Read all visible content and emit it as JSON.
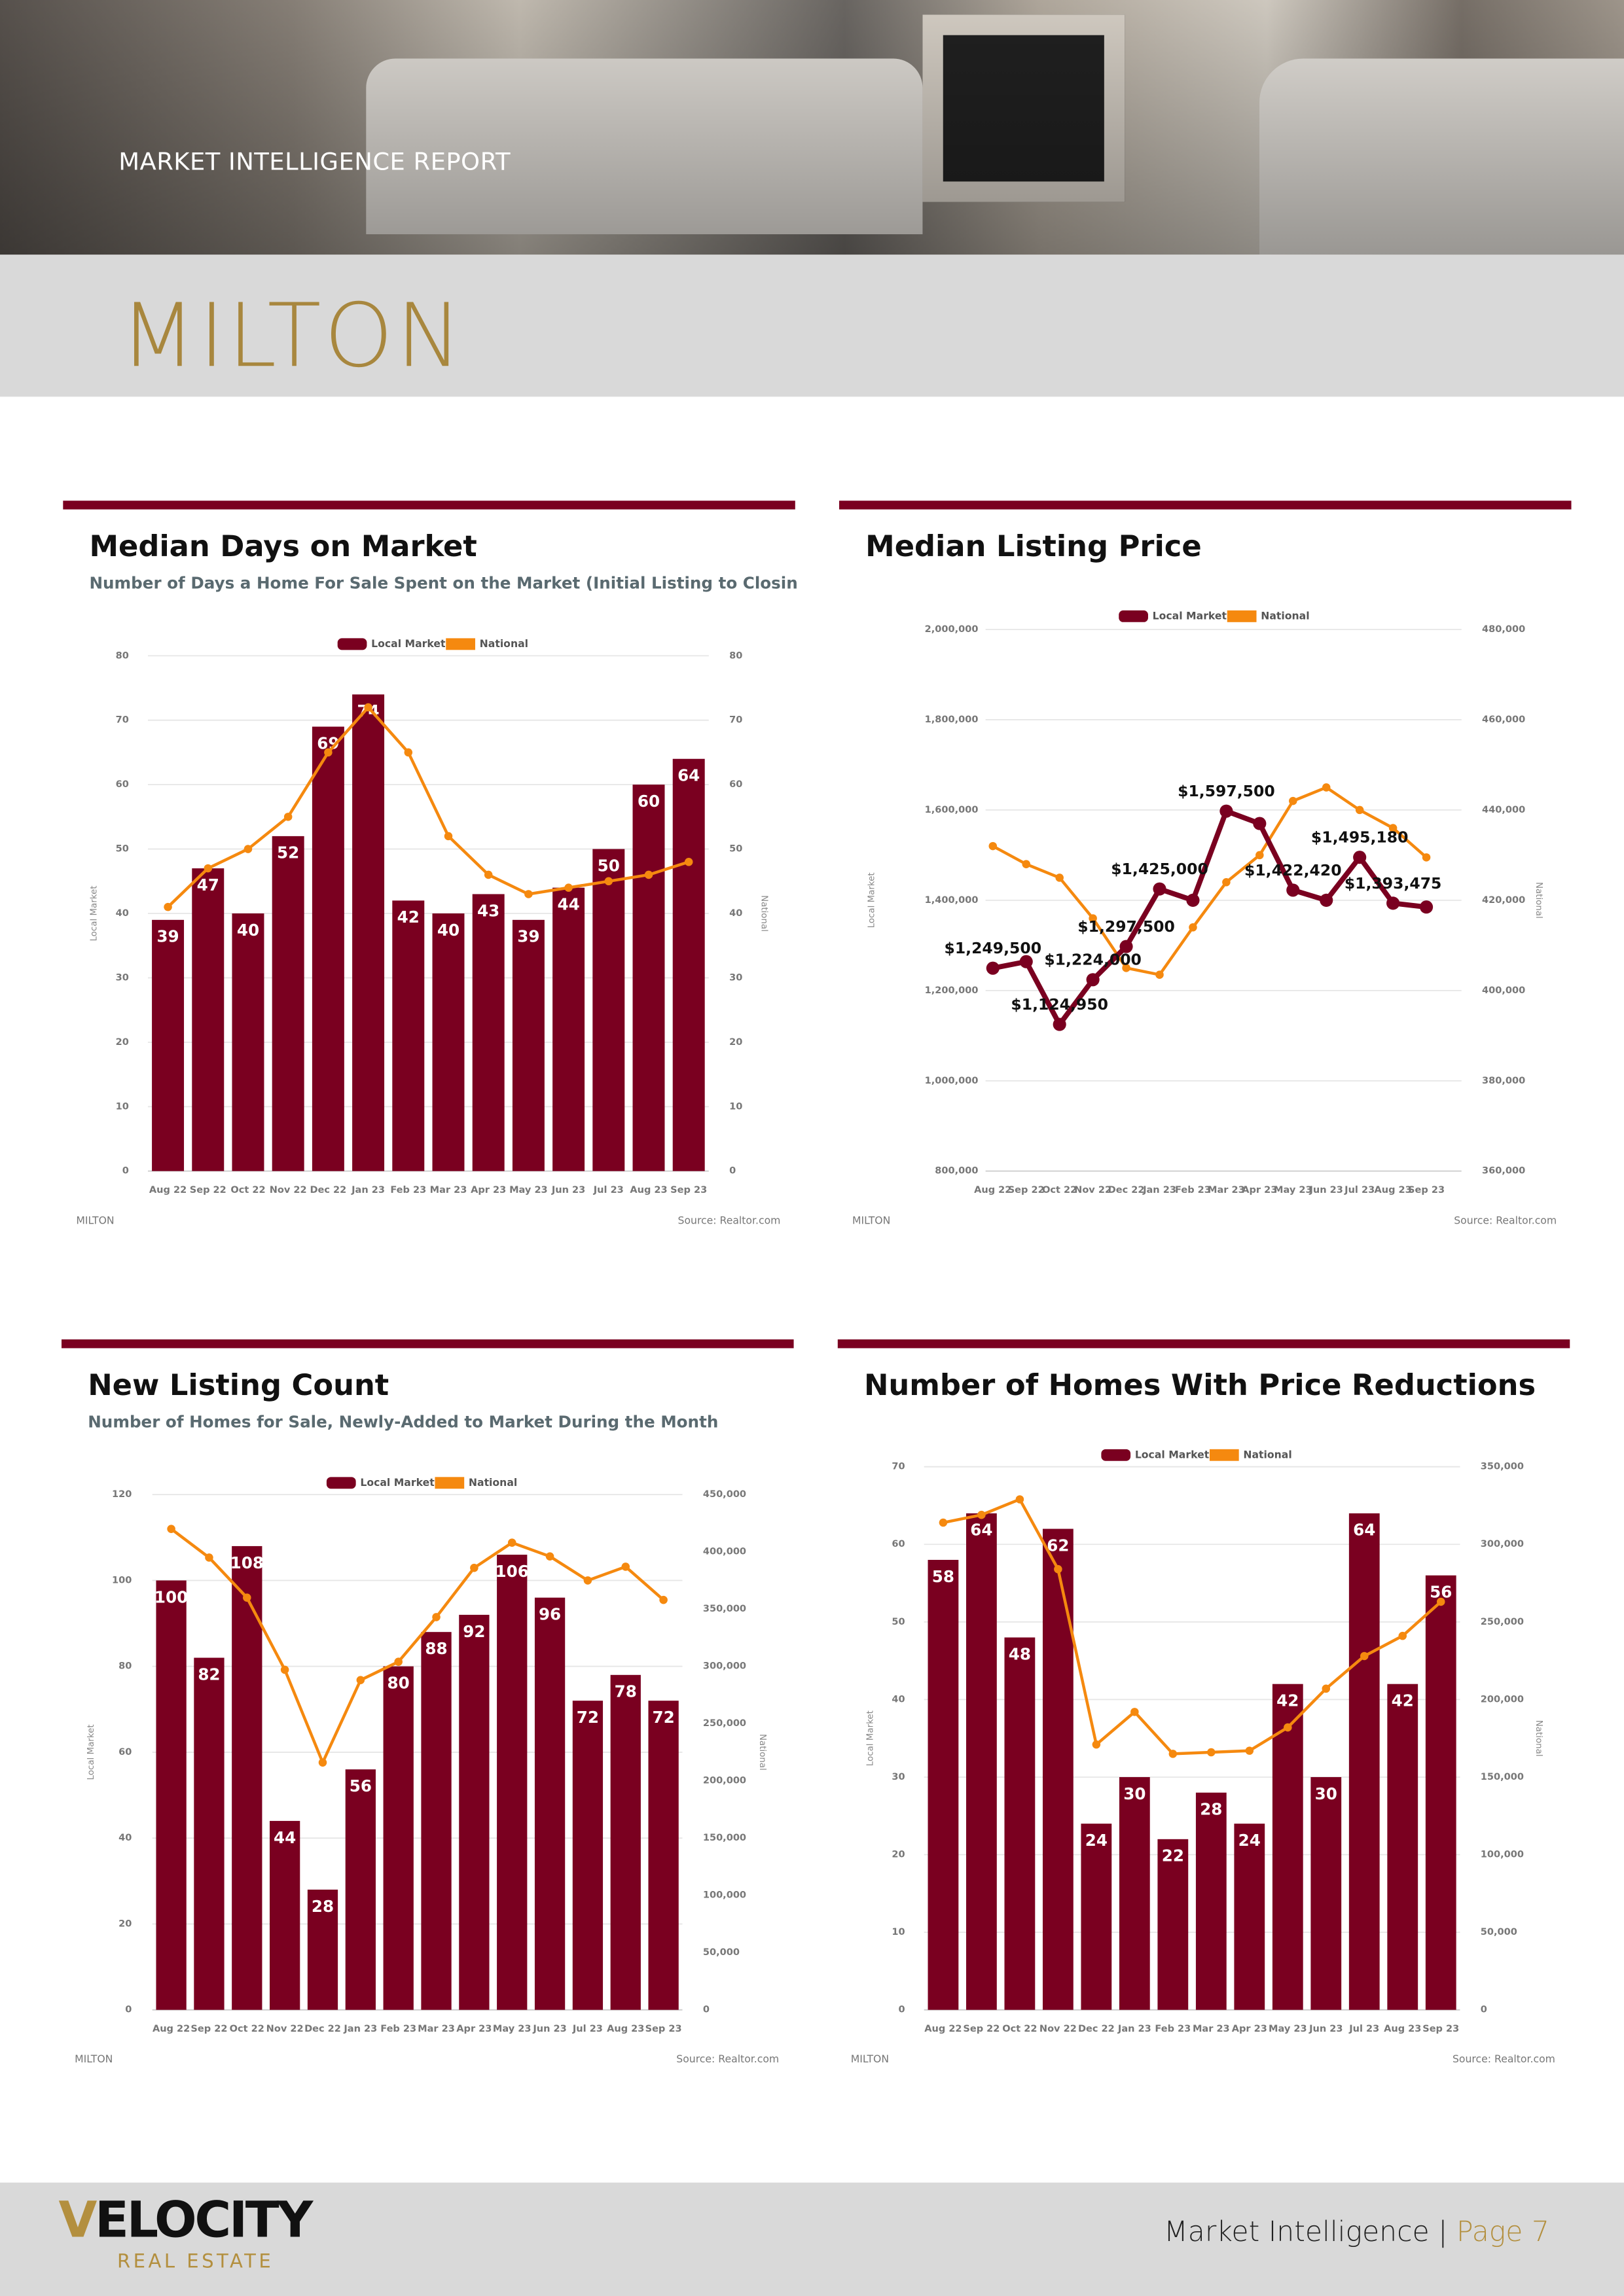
{
  "header": {
    "report_label": "MARKET INTELLIGENCE REPORT",
    "city": "MILTON"
  },
  "footer": {
    "brand": "VELOCITY",
    "brand_sub": "REAL ESTATE",
    "page_text": "Market Intelligence |",
    "page_number": "Page 7"
  },
  "chart_data": [
    {
      "type": "combo",
      "title": "Median Days on Market",
      "subtitle": "Number of Days a Home For Sale Spent on the Market (Initial Listing to Closing Date)",
      "categories": [
        "Aug 22",
        "Sep 22",
        "Oct 22",
        "Nov 22",
        "Dec 22",
        "Jan 23",
        "Feb 23",
        "Mar 23",
        "Apr 23",
        "May 23",
        "Jun 23",
        "Jul 23",
        "Aug 23",
        "Sep 23"
      ],
      "series": [
        {
          "name": "Local Market",
          "type": "bar",
          "color": "#7a0020",
          "values": [
            39,
            47,
            40,
            52,
            69,
            74,
            42,
            40,
            43,
            39,
            44,
            50,
            60,
            64
          ]
        },
        {
          "name": "National",
          "type": "line",
          "axis": "y2",
          "color": "#f5890f",
          "values": [
            41,
            47,
            50,
            55,
            65,
            72,
            65,
            52,
            46,
            43,
            44,
            45,
            46,
            48
          ]
        }
      ],
      "ylim": [
        0,
        80
      ],
      "yticks": [
        0,
        10,
        20,
        30,
        40,
        50,
        60,
        70,
        80
      ],
      "y2lim": [
        0,
        80
      ],
      "y2ticks": [
        0,
        10,
        20,
        30,
        40,
        50,
        60,
        70,
        80
      ],
      "y_label": "Local Market",
      "y2_label": "National",
      "grid": true,
      "legend": "top",
      "footnote": "MILTON",
      "source": "Source: Realtor.com"
    },
    {
      "type": "line",
      "title": "Median Listing Price",
      "categories": [
        "Aug 22",
        "Sep 22",
        "Oct 22",
        "Nov 22",
        "Dec 22",
        "Jan 23",
        "Feb 23",
        "Mar 23",
        "Apr 23",
        "May 23",
        "Jun 23",
        "Jul 23",
        "Aug 23",
        "Sep 23"
      ],
      "series": [
        {
          "name": "Local Market",
          "type": "line",
          "color": "#7a0020",
          "values": [
            1249500,
            1264000,
            1124950,
            1224000,
            1297500,
            1425000,
            1400000,
            1597500,
            1570000,
            1422420,
            1400000,
            1495180,
            1393475,
            1385000
          ],
          "value_labels": [
            "$1,249,500",
            null,
            "$1,124,950",
            "$1,224,000",
            "$1,297,500",
            "$1,425,000",
            null,
            "$1,597,500",
            null,
            "$1,422,420",
            null,
            "$1,495,180",
            "$1,393,475",
            null
          ]
        },
        {
          "name": "National",
          "type": "line",
          "axis": "y2",
          "color": "#f5890f",
          "values": [
            432000,
            428000,
            425000,
            416000,
            405000,
            403500,
            414000,
            424000,
            430000,
            442000,
            445000,
            440000,
            436000,
            429500
          ]
        }
      ],
      "ylim": [
        800000,
        2000000
      ],
      "yticks": [
        {
          "value": 800000,
          "label": "800,000"
        },
        {
          "value": 1000000,
          "label": "1,000,000"
        },
        {
          "value": 1200000,
          "label": "1,200,000"
        },
        {
          "value": 1400000,
          "label": "1,400,000"
        },
        {
          "value": 1600000,
          "label": "1,600,000"
        },
        {
          "value": 1800000,
          "label": "1,800,000"
        },
        {
          "value": 2000000,
          "label": "2,000,000"
        }
      ],
      "y2lim": [
        360000,
        480000
      ],
      "y2ticks": [
        {
          "value": 360000,
          "label": "360,000"
        },
        {
          "value": 380000,
          "label": "380,000"
        },
        {
          "value": 400000,
          "label": "400,000"
        },
        {
          "value": 420000,
          "label": "420,000"
        },
        {
          "value": 440000,
          "label": "440,000"
        },
        {
          "value": 460000,
          "label": "460,000"
        },
        {
          "value": 480000,
          "label": "480,000"
        }
      ],
      "y_label": "Local Market",
      "y2_label": "National",
      "grid": true,
      "legend": "top",
      "footnote": "MILTON",
      "source": "Source: Realtor.com"
    },
    {
      "type": "combo",
      "title": "New Listing Count",
      "subtitle": "Number of Homes for Sale, Newly-Added to Market During the Month",
      "categories": [
        "Aug 22",
        "Sep 22",
        "Oct 22",
        "Nov 22",
        "Dec 22",
        "Jan 23",
        "Feb 23",
        "Mar 23",
        "Apr 23",
        "May 23",
        "Jun 23",
        "Jul 23",
        "Aug 23",
        "Sep 23"
      ],
      "series": [
        {
          "name": "Local Market",
          "type": "bar",
          "color": "#7a0020",
          "values": [
            100,
            82,
            108,
            44,
            28,
            56,
            80,
            88,
            92,
            106,
            96,
            72,
            78,
            72
          ]
        },
        {
          "name": "National",
          "type": "line",
          "axis": "y2",
          "color": "#f5890f",
          "values": [
            420000,
            395000,
            360000,
            297000,
            216000,
            288000,
            304000,
            343000,
            386000,
            408000,
            396000,
            375000,
            387000,
            358000
          ]
        }
      ],
      "ylim": [
        0,
        120
      ],
      "yticks": [
        0,
        20,
        40,
        60,
        80,
        100,
        120
      ],
      "y2lim": [
        0,
        450000
      ],
      "y2ticks": [
        0,
        {
          "value": 50000,
          "label": "50,000"
        },
        {
          "value": 100000,
          "label": "100,000"
        },
        {
          "value": 150000,
          "label": "150,000"
        },
        {
          "value": 200000,
          "label": "200,000"
        },
        {
          "value": 250000,
          "label": "250,000"
        },
        {
          "value": 300000,
          "label": "300,000"
        },
        {
          "value": 350000,
          "label": "350,000"
        },
        {
          "value": 400000,
          "label": "400,000"
        },
        {
          "value": 450000,
          "label": "450,000"
        }
      ],
      "y_label": "Local Market",
      "y2_label": "National",
      "grid": true,
      "legend": "top",
      "footnote": "MILTON",
      "source": "Source: Realtor.com"
    },
    {
      "type": "combo",
      "title": "Number of Homes With Price Reductions",
      "categories": [
        "Aug 22",
        "Sep 22",
        "Oct 22",
        "Nov 22",
        "Dec 22",
        "Jan 23",
        "Feb 23",
        "Mar 23",
        "Apr 23",
        "May 23",
        "Jun 23",
        "Jul 23",
        "Aug 23",
        "Sep 23"
      ],
      "series": [
        {
          "name": "Local Market",
          "type": "bar",
          "color": "#7a0020",
          "values": [
            58,
            64,
            48,
            62,
            24,
            30,
            22,
            28,
            24,
            42,
            30,
            64,
            42,
            56
          ]
        },
        {
          "name": "National",
          "type": "line",
          "axis": "y2",
          "color": "#f5890f",
          "values": [
            314000,
            319000,
            329000,
            284000,
            171000,
            192000,
            165000,
            166000,
            167000,
            182000,
            207000,
            228000,
            241000,
            263000
          ]
        }
      ],
      "ylim": [
        0,
        70
      ],
      "yticks": [
        0,
        10,
        20,
        30,
        40,
        50,
        60,
        70
      ],
      "y2lim": [
        0,
        350000
      ],
      "y2ticks": [
        0,
        {
          "value": 50000,
          "label": "50,000"
        },
        {
          "value": 100000,
          "label": "100,000"
        },
        {
          "value": 150000,
          "label": "150,000"
        },
        {
          "value": 200000,
          "label": "200,000"
        },
        {
          "value": 250000,
          "label": "250,000"
        },
        {
          "value": 300000,
          "label": "300,000"
        },
        {
          "value": 350000,
          "label": "350,000"
        }
      ],
      "y_label": "Local Market",
      "y2_label": "National",
      "grid": true,
      "legend": "top",
      "footnote": "MILTON",
      "source": "Source: Realtor.com"
    }
  ]
}
